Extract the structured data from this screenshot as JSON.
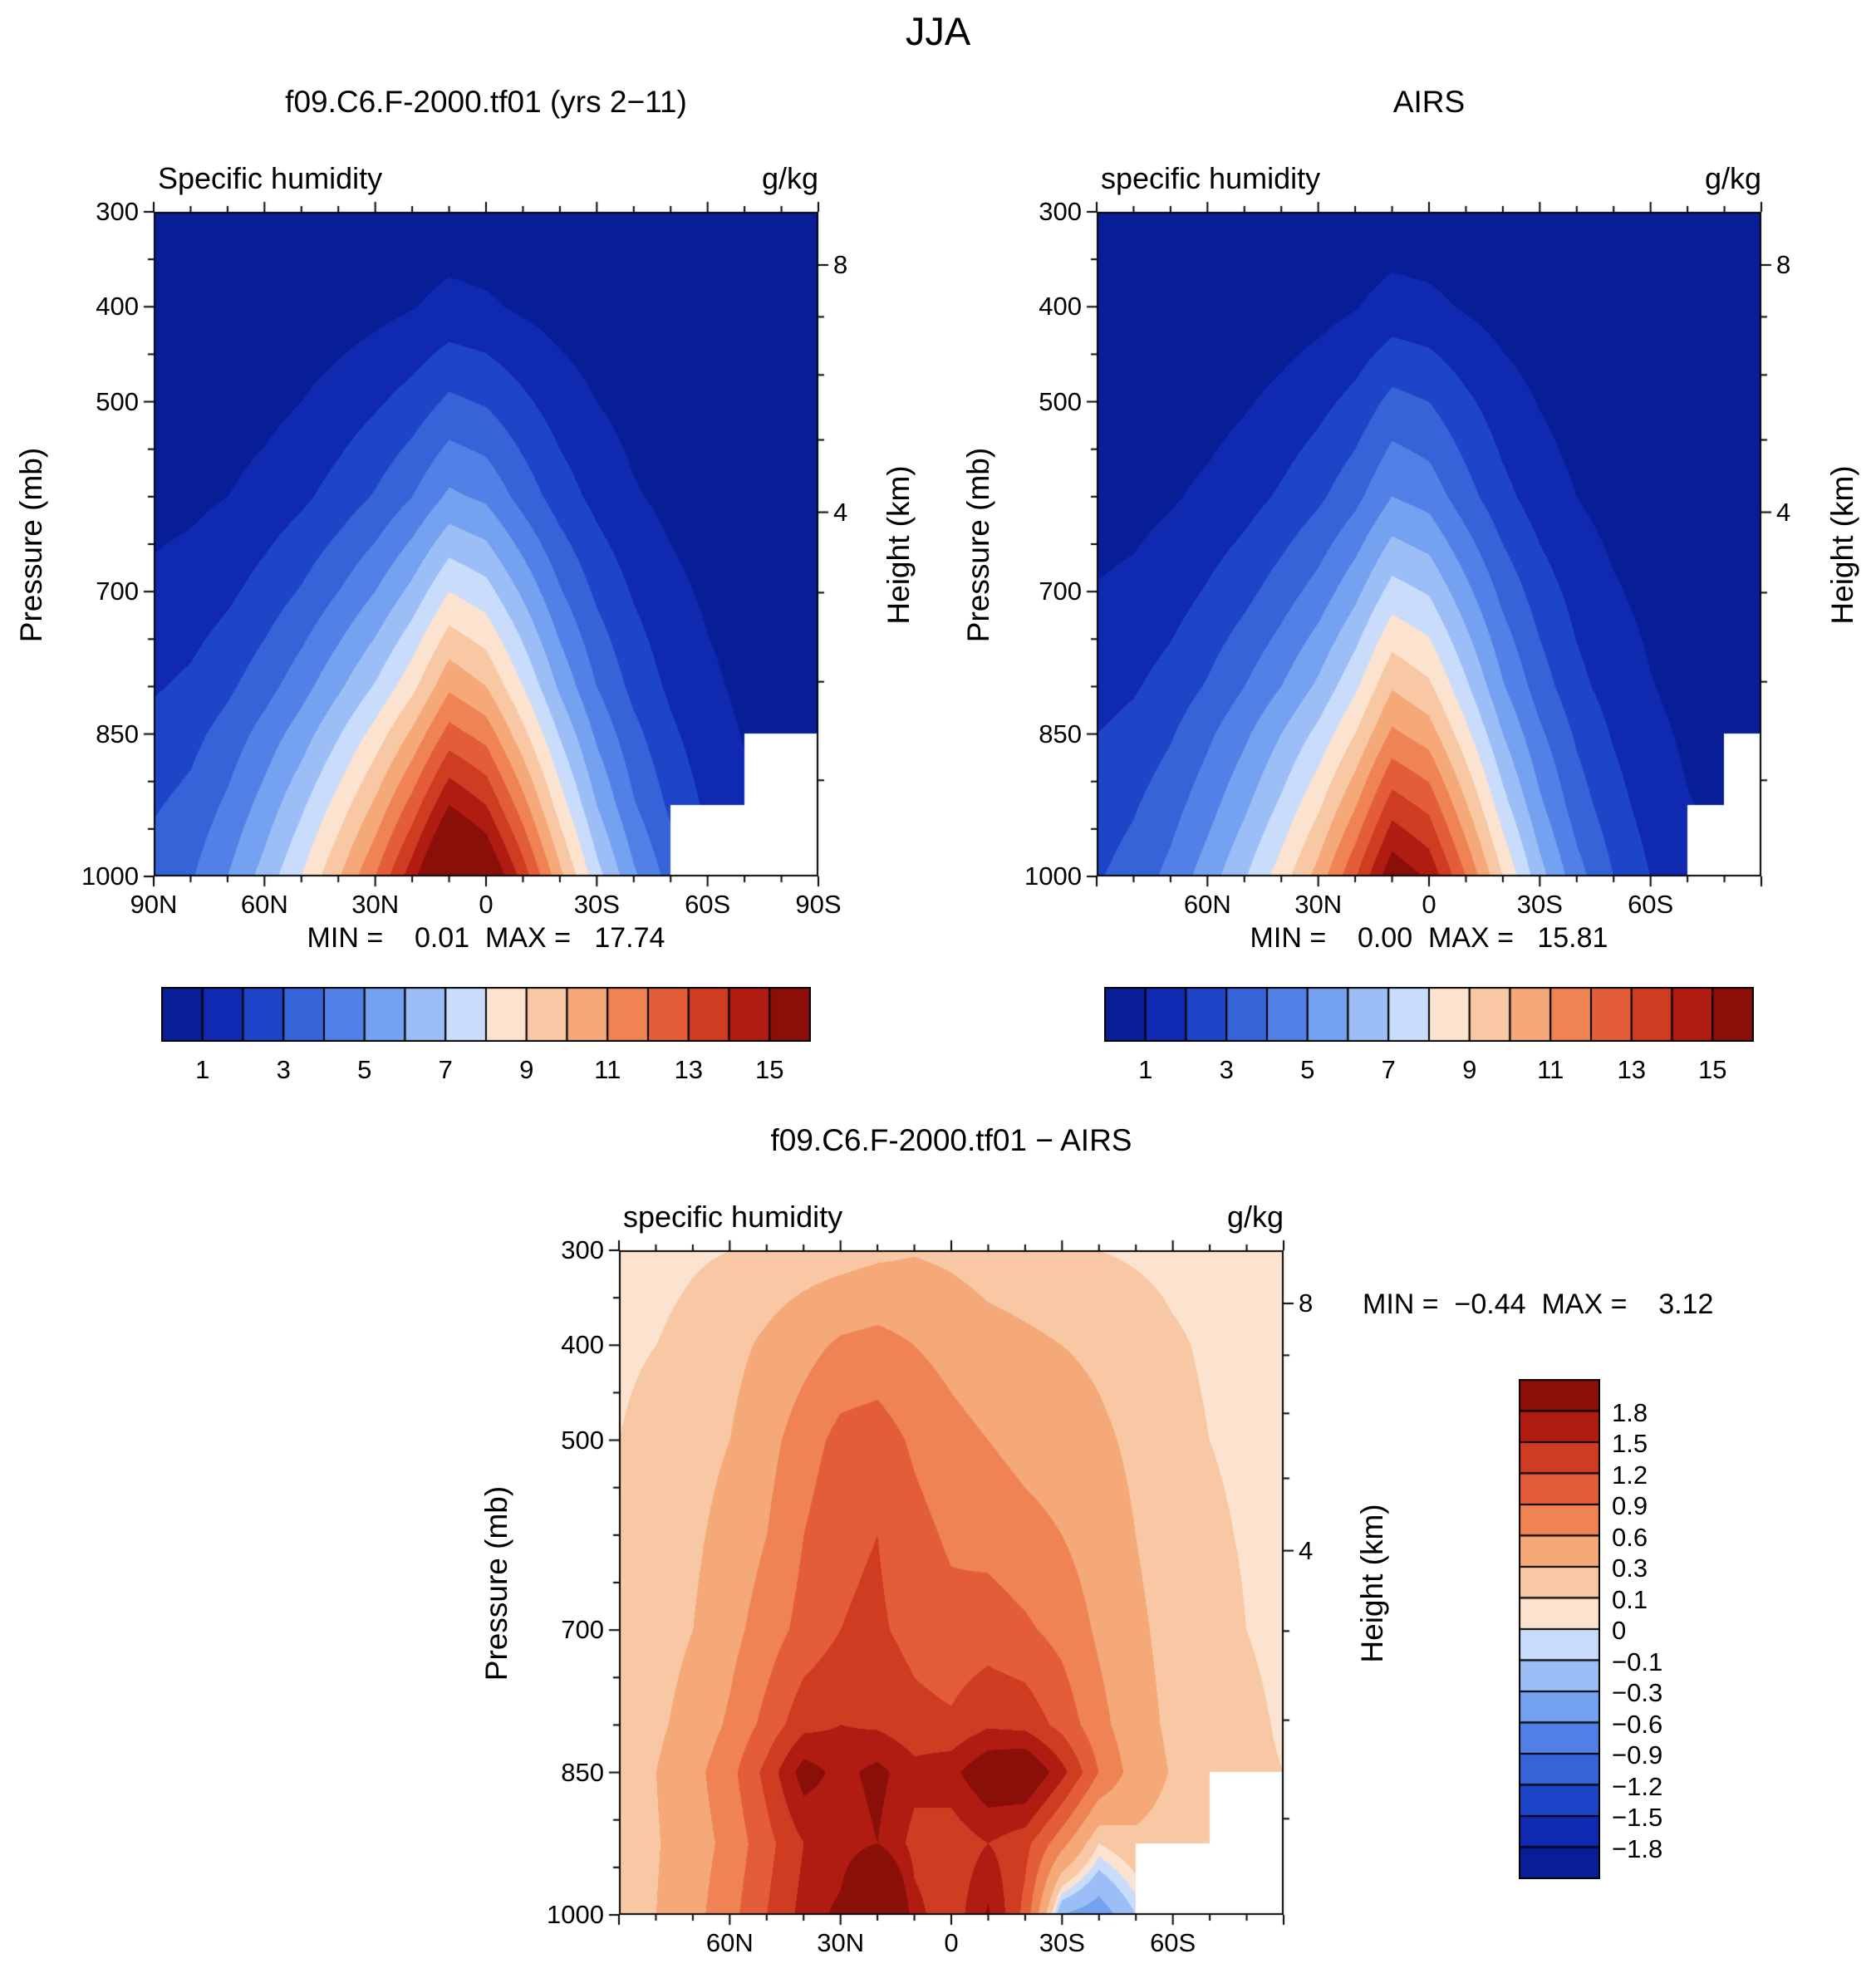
{
  "page_title": "JJA",
  "chart_data": [
    {
      "type": "contour",
      "id": "model",
      "title": "f09.C6.F-2000.tf01 (yrs 2−11)",
      "subtitle_left": "Specific humidity",
      "units": "g/kg",
      "ylabel": "Pressure (mb)",
      "y2label": "Height (km)",
      "stats": {
        "text": "MIN =    0.01  MAX =   17.74",
        "min": 0.01,
        "max": 17.74
      },
      "xlim": [
        90,
        -90
      ],
      "ylim": [
        300,
        1000
      ],
      "xticks": [
        {
          "t": "90N",
          "lat": 90
        },
        {
          "t": "60N",
          "lat": 60
        },
        {
          "t": "30N",
          "lat": 30
        },
        {
          "t": "0",
          "lat": 0
        },
        {
          "t": "30S",
          "lat": -30
        },
        {
          "t": "60S",
          "lat": -60
        },
        {
          "t": "90S",
          "lat": -90
        }
      ],
      "yticks": [
        {
          "t": "300",
          "p": 300
        },
        {
          "t": "400",
          "p": 400
        },
        {
          "t": "500",
          "p": 500
        },
        {
          "t": "700",
          "p": 700
        },
        {
          "t": "850",
          "p": 850
        },
        {
          "t": "1000",
          "p": 1000
        }
      ],
      "y2ticks": [
        {
          "t": "8",
          "km": 8
        },
        {
          "t": "4",
          "km": 4
        }
      ],
      "levels": [
        1,
        2,
        3,
        4,
        5,
        6,
        7,
        8,
        9,
        10,
        11,
        12,
        13,
        14,
        15
      ],
      "colors": [
        "#071e97",
        "#0f2ab0",
        "#1e45c8",
        "#3563d8",
        "#5181e6",
        "#74a1f0",
        "#9cbef7",
        "#c9dcfb",
        "#fbe3cf",
        "#f8c8a4",
        "#f5a878",
        "#ef8354",
        "#e35d38",
        "#cf3c22",
        "#b01b12",
        "#8a0f08"
      ],
      "colorbar": {
        "orient": "h",
        "labels": [
          {
            "t": "1",
            "b": 1
          },
          {
            "t": "3",
            "b": 3
          },
          {
            "t": "5",
            "b": 5
          },
          {
            "t": "7",
            "b": 7
          },
          {
            "t": "9",
            "b": 9
          },
          {
            "t": "11",
            "b": 11
          },
          {
            "t": "13",
            "b": 13
          },
          {
            "t": "15",
            "b": 15
          }
        ]
      },
      "grid": {
        "lats": [
          90,
          80,
          70,
          60,
          50,
          40,
          30,
          20,
          10,
          0,
          -10,
          -20,
          -30,
          -40,
          -50,
          -60,
          -70,
          -80,
          -90
        ],
        "pressures": [
          300,
          400,
          500,
          600,
          700,
          800,
          850,
          925,
          1000
        ],
        "values": [
          [
            0.05,
            0.06,
            0.08,
            0.1,
            0.13,
            0.16,
            0.2,
            0.27,
            0.35,
            0.31,
            0.23,
            0.16,
            0.11,
            0.08,
            0.06,
            0.05,
            0.04,
            0.03,
            0.03
          ],
          [
            0.12,
            0.14,
            0.18,
            0.25,
            0.35,
            0.5,
            0.7,
            0.95,
            1.3,
            1.15,
            0.85,
            0.6,
            0.4,
            0.26,
            0.18,
            0.12,
            0.08,
            0.06,
            0.05
          ],
          [
            0.35,
            0.4,
            0.5,
            0.7,
            1.0,
            1.4,
            1.85,
            2.4,
            3.2,
            2.9,
            2.2,
            1.5,
            1.0,
            0.65,
            0.45,
            0.3,
            0.2,
            0.15,
            0.12
          ],
          [
            0.7,
            0.8,
            1.0,
            1.35,
            1.8,
            2.4,
            3.1,
            4.0,
            5.2,
            4.8,
            3.6,
            2.5,
            1.7,
            1.1,
            0.75,
            0.5,
            0.35,
            0.25,
            0.2
          ],
          [
            1.2,
            1.4,
            1.8,
            2.4,
            3.1,
            4.0,
            5.0,
            6.3,
            8.0,
            7.4,
            5.8,
            4.1,
            2.8,
            1.9,
            1.25,
            0.85,
            0.55,
            0.4,
            0.32
          ],
          [
            1.9,
            2.2,
            2.8,
            3.6,
            4.6,
            5.8,
            7.1,
            8.7,
            10.8,
            10.0,
            8.0,
            5.8,
            4.0,
            2.7,
            1.8,
            1.2,
            0.8,
            0.55,
            0.45
          ],
          [
            2.3,
            2.7,
            3.4,
            4.4,
            5.5,
            6.9,
            8.4,
            10.2,
            12.4,
            11.6,
            9.3,
            6.9,
            4.8,
            3.3,
            2.2,
            1.4,
            0.95,
            0.7,
            0.55
          ],
          [
            2.9,
            3.3,
            4.2,
            5.4,
            6.8,
            8.4,
            10.2,
            12.4,
            15.0,
            14.0,
            11.4,
            8.5,
            6.0,
            4.1,
            2.8,
            1.8,
            1.2,
            null,
            null
          ],
          [
            3.4,
            3.9,
            5.0,
            6.4,
            8.0,
            9.9,
            12.0,
            14.6,
            17.7,
            16.5,
            13.6,
            10.3,
            7.4,
            5.2,
            3.6,
            null,
            null,
            null,
            null
          ]
        ]
      }
    },
    {
      "type": "contour",
      "id": "airs",
      "title": "AIRS",
      "subtitle_left": "specific humidity",
      "units": "g/kg",
      "ylabel": "Pressure (mb)",
      "y2label": "Height (km)",
      "stats": {
        "text": "MIN =    0.00  MAX =   15.81",
        "min": 0.0,
        "max": 15.81
      },
      "xlim": [
        90,
        -90
      ],
      "ylim": [
        300,
        1000
      ],
      "xticks": [
        {
          "t": "60N",
          "lat": 60
        },
        {
          "t": "30N",
          "lat": 30
        },
        {
          "t": "0",
          "lat": 0
        },
        {
          "t": "30S",
          "lat": -30
        },
        {
          "t": "60S",
          "lat": -60
        }
      ],
      "yticks": [
        {
          "t": "300",
          "p": 300
        },
        {
          "t": "400",
          "p": 400
        },
        {
          "t": "500",
          "p": 500
        },
        {
          "t": "700",
          "p": 700
        },
        {
          "t": "850",
          "p": 850
        },
        {
          "t": "1000",
          "p": 1000
        }
      ],
      "y2ticks": [
        {
          "t": "8",
          "km": 8
        },
        {
          "t": "4",
          "km": 4
        }
      ],
      "levels": [
        1,
        2,
        3,
        4,
        5,
        6,
        7,
        8,
        9,
        10,
        11,
        12,
        13,
        14,
        15
      ],
      "colors": [
        "#071e97",
        "#0f2ab0",
        "#1e45c8",
        "#3563d8",
        "#5181e6",
        "#74a1f0",
        "#9cbef7",
        "#c9dcfb",
        "#fbe3cf",
        "#f8c8a4",
        "#f5a878",
        "#ef8354",
        "#e35d38",
        "#cf3c22",
        "#b01b12",
        "#8a0f08"
      ],
      "colorbar": {
        "orient": "h",
        "labels": [
          {
            "t": "1",
            "b": 1
          },
          {
            "t": "3",
            "b": 3
          },
          {
            "t": "5",
            "b": 5
          },
          {
            "t": "7",
            "b": 7
          },
          {
            "t": "9",
            "b": 9
          },
          {
            "t": "11",
            "b": 11
          },
          {
            "t": "13",
            "b": 13
          },
          {
            "t": "15",
            "b": 15
          }
        ]
      },
      "grid": {
        "lats": [
          90,
          80,
          70,
          60,
          50,
          40,
          30,
          20,
          10,
          0,
          -10,
          -20,
          -30,
          -40,
          -50,
          -60,
          -70,
          -80,
          -90
        ],
        "pressures": [
          300,
          400,
          500,
          600,
          700,
          800,
          850,
          925,
          1000
        ],
        "values": [
          [
            0.04,
            0.05,
            0.06,
            0.08,
            0.1,
            0.13,
            0.16,
            0.22,
            0.3,
            0.27,
            0.2,
            0.13,
            0.09,
            0.07,
            0.05,
            0.04,
            0.03,
            0.03,
            0.02
          ],
          [
            0.1,
            0.12,
            0.16,
            0.22,
            0.32,
            0.45,
            0.65,
            0.95,
            1.4,
            1.25,
            0.9,
            0.6,
            0.38,
            0.24,
            0.16,
            0.11,
            0.07,
            0.05,
            0.04
          ],
          [
            0.3,
            0.35,
            0.45,
            0.62,
            0.9,
            1.25,
            1.7,
            2.3,
            3.3,
            3.0,
            2.2,
            1.45,
            0.95,
            0.6,
            0.4,
            0.27,
            0.18,
            0.13,
            0.1
          ],
          [
            0.6,
            0.7,
            0.9,
            1.2,
            1.6,
            2.15,
            2.8,
            3.7,
            5.0,
            4.6,
            3.4,
            2.3,
            1.5,
            1.0,
            0.65,
            0.45,
            0.3,
            0.22,
            0.18
          ],
          [
            1.05,
            1.2,
            1.55,
            2.1,
            2.7,
            3.5,
            4.4,
            5.7,
            7.4,
            6.9,
            5.3,
            3.7,
            2.5,
            1.65,
            1.1,
            0.75,
            0.5,
            0.35,
            0.28
          ],
          [
            1.65,
            1.9,
            2.4,
            3.1,
            4.0,
            5.0,
            6.2,
            7.8,
            9.9,
            9.2,
            7.2,
            5.1,
            3.5,
            2.3,
            1.55,
            1.05,
            0.7,
            0.5,
            0.4
          ],
          [
            2.0,
            2.3,
            2.9,
            3.8,
            4.8,
            6.0,
            7.3,
            9.0,
            11.2,
            10.5,
            8.3,
            6.0,
            4.2,
            2.85,
            1.9,
            1.25,
            0.85,
            0.6,
            0.5
          ],
          [
            2.5,
            2.9,
            3.6,
            4.6,
            5.8,
            7.2,
            8.8,
            10.9,
            13.5,
            12.7,
            10.1,
            7.4,
            5.2,
            3.5,
            2.4,
            1.55,
            1.05,
            0.8,
            null
          ],
          [
            2.9,
            3.4,
            4.3,
            5.5,
            6.9,
            8.5,
            10.4,
            12.9,
            15.8,
            14.8,
            12.0,
            9.0,
            6.4,
            4.4,
            3.0,
            2.0,
            1.4,
            null,
            null
          ]
        ]
      }
    },
    {
      "type": "contour",
      "id": "difference",
      "title": "f09.C6.F-2000.tf01 − AIRS",
      "subtitle_left": "specific humidity",
      "units": "g/kg",
      "ylabel": "Pressure (mb)",
      "y2label": "Height (km)",
      "stats": {
        "text": "MIN =  −0.44  MAX =    3.12",
        "min": -0.44,
        "max": 3.12
      },
      "xlim": [
        90,
        -90
      ],
      "ylim": [
        300,
        1000
      ],
      "xticks": [
        {
          "t": "60N",
          "lat": 60
        },
        {
          "t": "30N",
          "lat": 30
        },
        {
          "t": "0",
          "lat": 0
        },
        {
          "t": "30S",
          "lat": -30
        },
        {
          "t": "60S",
          "lat": -60
        }
      ],
      "yticks": [
        {
          "t": "300",
          "p": 300
        },
        {
          "t": "400",
          "p": 400
        },
        {
          "t": "500",
          "p": 500
        },
        {
          "t": "700",
          "p": 700
        },
        {
          "t": "850",
          "p": 850
        },
        {
          "t": "1000",
          "p": 1000
        }
      ],
      "y2ticks": [
        {
          "t": "8",
          "km": 8
        },
        {
          "t": "4",
          "km": 4
        }
      ],
      "levels": [
        -1.8,
        -1.5,
        -1.2,
        -0.9,
        -0.6,
        -0.3,
        -0.1,
        0,
        0.1,
        0.3,
        0.6,
        0.9,
        1.2,
        1.5,
        1.8
      ],
      "colors": [
        "#071e97",
        "#0f2ab0",
        "#1e45c8",
        "#3563d8",
        "#5181e6",
        "#74a1f0",
        "#9cbef7",
        "#c9dcfb",
        "#fbe3cf",
        "#f8c8a4",
        "#f5a878",
        "#ef8354",
        "#e35d38",
        "#cf3c22",
        "#b01b12",
        "#8a0f08"
      ],
      "colorbar": {
        "orient": "v",
        "labels": [
          {
            "t": "1.8",
            "b": 1
          },
          {
            "t": "1.5",
            "b": 2
          },
          {
            "t": "1.2",
            "b": 3
          },
          {
            "t": "0.9",
            "b": 4
          },
          {
            "t": "0.6",
            "b": 5
          },
          {
            "t": "0.3",
            "b": 6
          },
          {
            "t": "0.1",
            "b": 7
          },
          {
            "t": "0",
            "b": 8
          },
          {
            "t": "−0.1",
            "b": 9
          },
          {
            "t": "−0.3",
            "b": 10
          },
          {
            "t": "−0.6",
            "b": 11
          },
          {
            "t": "−0.9",
            "b": 12
          },
          {
            "t": "−1.2",
            "b": 13
          },
          {
            "t": "−1.5",
            "b": 14
          },
          {
            "t": "−1.8",
            "b": 15
          }
        ]
      },
      "grid": {
        "lats": [
          90,
          80,
          70,
          60,
          50,
          40,
          30,
          20,
          10,
          0,
          -10,
          -20,
          -30,
          -40,
          -50,
          -60,
          -70,
          -80,
          -90
        ],
        "pressures": [
          300,
          400,
          500,
          600,
          700,
          800,
          850,
          925,
          1000
        ],
        "values": [
          [
            0.05,
            0.05,
            0.08,
            0.1,
            0.12,
            0.15,
            0.18,
            0.24,
            0.28,
            0.24,
            0.18,
            0.15,
            0.12,
            0.1,
            0.08,
            0.06,
            0.05,
            0.05,
            0.04
          ],
          [
            0.08,
            0.1,
            0.15,
            0.22,
            0.35,
            0.5,
            0.65,
            0.7,
            0.6,
            0.5,
            0.4,
            0.35,
            0.3,
            0.25,
            0.18,
            0.12,
            0.08,
            0.06,
            0.05
          ],
          [
            0.1,
            0.14,
            0.2,
            0.3,
            0.5,
            0.75,
            1.0,
            1.05,
            0.85,
            0.7,
            0.6,
            0.5,
            0.45,
            0.35,
            0.25,
            0.15,
            0.1,
            0.08,
            0.06
          ],
          [
            0.12,
            0.17,
            0.25,
            0.4,
            0.6,
            0.9,
            1.15,
            1.2,
            1.0,
            0.85,
            0.8,
            0.7,
            0.6,
            0.45,
            0.3,
            0.18,
            0.12,
            0.09,
            0.07
          ],
          [
            0.15,
            0.2,
            0.3,
            0.5,
            0.75,
            1.0,
            1.2,
            1.25,
            1.1,
            1.0,
            1.05,
            0.95,
            0.8,
            0.55,
            0.35,
            0.22,
            0.15,
            0.1,
            0.08
          ],
          [
            0.18,
            0.25,
            0.4,
            0.65,
            1.0,
            1.4,
            1.5,
            1.45,
            1.3,
            1.25,
            1.45,
            1.4,
            1.1,
            0.7,
            0.4,
            0.25,
            0.16,
            0.12,
            0.09
          ],
          [
            0.2,
            0.3,
            0.5,
            0.8,
            1.3,
            1.95,
            1.7,
            1.9,
            1.6,
            1.7,
            2.1,
            2.2,
            1.6,
            0.9,
            0.45,
            0.28,
            0.18,
            0.12,
            0.1
          ],
          [
            0.18,
            0.28,
            0.45,
            0.7,
            1.1,
            1.5,
            1.6,
            1.8,
            1.4,
            1.3,
            1.5,
            1.3,
            0.7,
            0.1,
            0.25,
            0.2,
            0.15,
            null,
            null
          ],
          [
            0.2,
            0.3,
            0.5,
            0.8,
            1.2,
            1.6,
            1.9,
            3.1,
            1.6,
            1.3,
            1.85,
            1.1,
            -0.3,
            -0.44,
            -0.1,
            null,
            null,
            null,
            null
          ]
        ]
      }
    }
  ]
}
